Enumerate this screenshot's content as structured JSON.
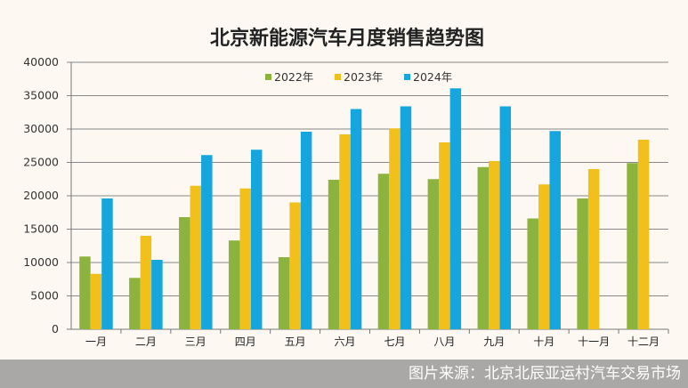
{
  "chart_data": {
    "type": "bar",
    "title": "北京新能源汽车月度销售趋势图",
    "xlabel": "",
    "ylabel": "",
    "ylim": [
      0,
      40000
    ],
    "yticks": [
      "0",
      "5000",
      "10000",
      "15000",
      "20000",
      "25000",
      "30000",
      "35000",
      "40000"
    ],
    "grid": true,
    "legend_position": "top-center",
    "categories": [
      "一月",
      "二月",
      "三月",
      "四月",
      "五月",
      "六月",
      "七月",
      "八月",
      "九月",
      "十月",
      "十一月",
      "十二月"
    ],
    "series": [
      {
        "name": "2022年",
        "color": "#8db33f",
        "values": [
          10900,
          7700,
          16800,
          13300,
          10800,
          22400,
          23300,
          22500,
          24300,
          16600,
          19600,
          24900
        ]
      },
      {
        "name": "2023年",
        "color": "#f2c01a",
        "values": [
          8300,
          14000,
          21500,
          21100,
          19000,
          29200,
          30100,
          28000,
          25200,
          21700,
          24000,
          28400
        ]
      },
      {
        "name": "2024年",
        "color": "#14a6dc",
        "values": [
          19600,
          10400,
          26100,
          26900,
          29600,
          33000,
          33400,
          36100,
          33400,
          29700,
          null,
          null
        ]
      }
    ]
  },
  "source": "图片来源：北京北辰亚运村汽车交易市场"
}
